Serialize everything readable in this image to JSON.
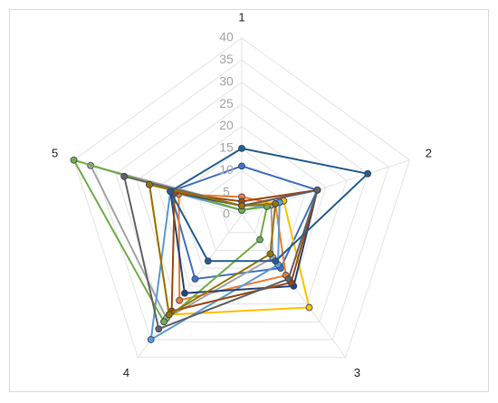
{
  "chart_data": {
    "type": "radar",
    "categories": [
      "1",
      "2",
      "3",
      "4",
      "5"
    ],
    "ylim": [
      0,
      40
    ],
    "yticks": [
      0,
      5,
      10,
      15,
      20,
      25,
      30,
      35,
      40
    ],
    "grid": true,
    "series": [
      {
        "color": "#4472c4",
        "values": [
          11,
          18,
          15,
          18,
          17
        ]
      },
      {
        "color": "#ed7d31",
        "values": [
          4,
          8,
          17,
          24,
          15
        ]
      },
      {
        "color": "#a5a5a5",
        "values": [
          2,
          7,
          12,
          29,
          36
        ]
      },
      {
        "color": "#ffc000",
        "values": [
          2,
          10,
          26,
          28,
          22
        ]
      },
      {
        "color": "#5b9bd5",
        "values": [
          1,
          9,
          14,
          35,
          17
        ]
      },
      {
        "color": "#70ad47",
        "values": [
          1,
          6,
          7,
          30,
          40
        ]
      },
      {
        "color": "#264478",
        "values": [
          2,
          18,
          20,
          22,
          17
        ]
      },
      {
        "color": "#9e480e",
        "values": [
          3,
          18,
          19,
          27,
          16
        ]
      },
      {
        "color": "#636363",
        "values": [
          2,
          18,
          18,
          32,
          28
        ]
      },
      {
        "color": "#997300",
        "values": [
          2,
          8,
          11,
          28,
          22
        ]
      },
      {
        "color": "#255e91",
        "values": [
          15,
          30,
          13,
          13,
          17
        ]
      }
    ]
  }
}
